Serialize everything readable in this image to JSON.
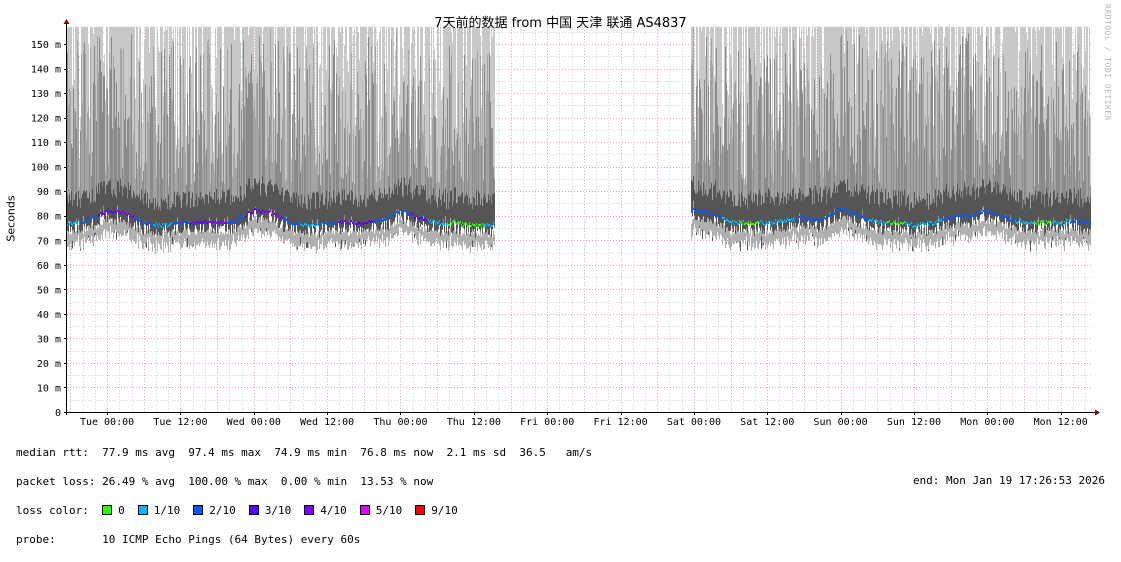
{
  "title": "7天前的数据 from  中国 天津 联通 AS4837",
  "watermark": "RRDTOOL / TOBI OETIKER",
  "legend": {
    "median_rtt_label": "median rtt:",
    "median_rtt": "77.9 ms avg  97.4 ms max  74.9 ms min  76.8 ms now  2.1 ms sd  36.5   am/s",
    "packet_loss_label": "packet loss:",
    "packet_loss": "26.49 % avg  100.00 % max  0.00 % min  13.53 % now",
    "loss_color_label": "loss color:",
    "loss_colors": [
      {
        "label": "0",
        "color": "#26ff00"
      },
      {
        "label": "1/10",
        "color": "#00b8ff"
      },
      {
        "label": "2/10",
        "color": "#0059ff"
      },
      {
        "label": "3/10",
        "color": "#5e00ff"
      },
      {
        "label": "4/10",
        "color": "#7e00ff"
      },
      {
        "label": "5/10",
        "color": "#dd00ff"
      },
      {
        "label": "9/10",
        "color": "#ff0000"
      }
    ],
    "probe_label": "probe:",
    "probe": "10 ICMP Echo Pings (64 Bytes) every 60s",
    "end": "end: Mon Jan 19 17:26:53 2026"
  },
  "chart_data": {
    "type": "line",
    "title": "7天前的数据 from  中国 天津 联通 AS4837",
    "ylabel": "Seconds",
    "xlim": [
      "2026-01-12 17:26:53",
      "2026-01-19 17:26:53"
    ],
    "ylim": [
      0,
      157
    ],
    "grid": true,
    "y_ticks": [
      "0",
      "10 m",
      "20 m",
      "30 m",
      "40 m",
      "50 m",
      "60 m",
      "70 m",
      "80 m",
      "90 m",
      "100 m",
      "110 m",
      "120 m",
      "130 m",
      "140 m",
      "150 m"
    ],
    "x_ticks": [
      {
        "t": "2026-01-13 00:00",
        "label": "Tue 00:00"
      },
      {
        "t": "2026-01-13 12:00",
        "label": "Tue 12:00"
      },
      {
        "t": "2026-01-14 00:00",
        "label": "Wed 00:00"
      },
      {
        "t": "2026-01-14 12:00",
        "label": "Wed 12:00"
      },
      {
        "t": "2026-01-15 00:00",
        "label": "Thu 00:00"
      },
      {
        "t": "2026-01-15 12:00",
        "label": "Thu 12:00"
      },
      {
        "t": "2026-01-16 00:00",
        "label": "Fri 00:00"
      },
      {
        "t": "2026-01-16 12:00",
        "label": "Fri 12:00"
      },
      {
        "t": "2026-01-17 00:00",
        "label": "Sat 00:00"
      },
      {
        "t": "2026-01-17 12:00",
        "label": "Sat 12:00"
      },
      {
        "t": "2026-01-18 00:00",
        "label": "Sun 00:00"
      },
      {
        "t": "2026-01-18 12:00",
        "label": "Sun 12:00"
      },
      {
        "t": "2026-01-19 00:00",
        "label": "Mon 00:00"
      },
      {
        "t": "2026-01-19 12:00",
        "label": "Mon 12:00"
      }
    ],
    "series": [
      {
        "name": "median rtt",
        "unit": "ms",
        "points": [
          [
            "2026-01-12 18:00",
            77,
            "1/10"
          ],
          [
            "2026-01-12 21:00",
            78,
            "2/10"
          ],
          [
            "2026-01-13 00:00",
            82,
            "3/10"
          ],
          [
            "2026-01-13 03:00",
            81,
            "4/10"
          ],
          [
            "2026-01-13 06:00",
            77,
            "2/10"
          ],
          [
            "2026-01-13 09:00",
            76,
            "1/10"
          ],
          [
            "2026-01-13 12:00",
            77,
            "2/10"
          ],
          [
            "2026-01-13 15:00",
            77,
            "3/10"
          ],
          [
            "2026-01-13 18:00",
            77,
            "4/10"
          ],
          [
            "2026-01-13 21:00",
            78,
            "2/10"
          ],
          [
            "2026-01-14 00:00",
            82,
            "3/10"
          ],
          [
            "2026-01-14 03:00",
            81,
            "4/10"
          ],
          [
            "2026-01-14 06:00",
            77,
            "2/10"
          ],
          [
            "2026-01-14 09:00",
            76,
            "1/10"
          ],
          [
            "2026-01-14 12:00",
            77,
            "2/10"
          ],
          [
            "2026-01-14 15:00",
            77,
            "3/10"
          ],
          [
            "2026-01-14 18:00",
            77,
            "3/10"
          ],
          [
            "2026-01-14 21:00",
            78,
            "2/10"
          ],
          [
            "2026-01-15 00:00",
            82,
            "2/10"
          ],
          [
            "2026-01-15 03:00",
            79,
            "3/10"
          ],
          [
            "2026-01-15 06:00",
            77,
            "1/10"
          ],
          [
            "2026-01-15 09:00",
            77,
            "0"
          ],
          [
            "2026-01-15 12:00",
            76,
            "0"
          ],
          [
            "2026-01-15 15:00",
            76,
            "1/10"
          ],
          [
            "2026-01-15 18:00",
            null,
            null
          ],
          [
            "2026-01-16 21:00",
            null,
            null
          ],
          [
            "2026-01-17 00:00",
            82,
            "2/10"
          ],
          [
            "2026-01-17 03:00",
            81,
            "2/10"
          ],
          [
            "2026-01-17 06:00",
            77,
            "1/10"
          ],
          [
            "2026-01-17 09:00",
            77,
            "0"
          ],
          [
            "2026-01-17 12:00",
            77,
            "1/10"
          ],
          [
            "2026-01-17 15:00",
            78,
            "1/10"
          ],
          [
            "2026-01-17 18:00",
            79,
            "2/10"
          ],
          [
            "2026-01-17 21:00",
            78,
            "2/10"
          ],
          [
            "2026-01-18 00:00",
            83,
            "2/10"
          ],
          [
            "2026-01-18 03:00",
            80,
            "2/10"
          ],
          [
            "2026-01-18 06:00",
            77,
            "1/10"
          ],
          [
            "2026-01-18 09:00",
            77,
            "0"
          ],
          [
            "2026-01-18 12:00",
            76,
            "1/10"
          ],
          [
            "2026-01-18 15:00",
            77,
            "1/10"
          ],
          [
            "2026-01-18 18:00",
            79,
            "2/10"
          ],
          [
            "2026-01-18 21:00",
            80,
            "2/10"
          ],
          [
            "2026-01-19 00:00",
            82,
            "2/10"
          ],
          [
            "2026-01-19 03:00",
            79,
            "2/10"
          ],
          [
            "2026-01-19 06:00",
            77,
            "1/10"
          ],
          [
            "2026-01-19 09:00",
            77,
            "0"
          ],
          [
            "2026-01-19 12:00",
            77,
            "1/10"
          ],
          [
            "2026-01-19 15:00",
            78,
            "2/10"
          ],
          [
            "2026-01-19 17:00",
            77,
            "2/10"
          ]
        ]
      }
    ]
  }
}
